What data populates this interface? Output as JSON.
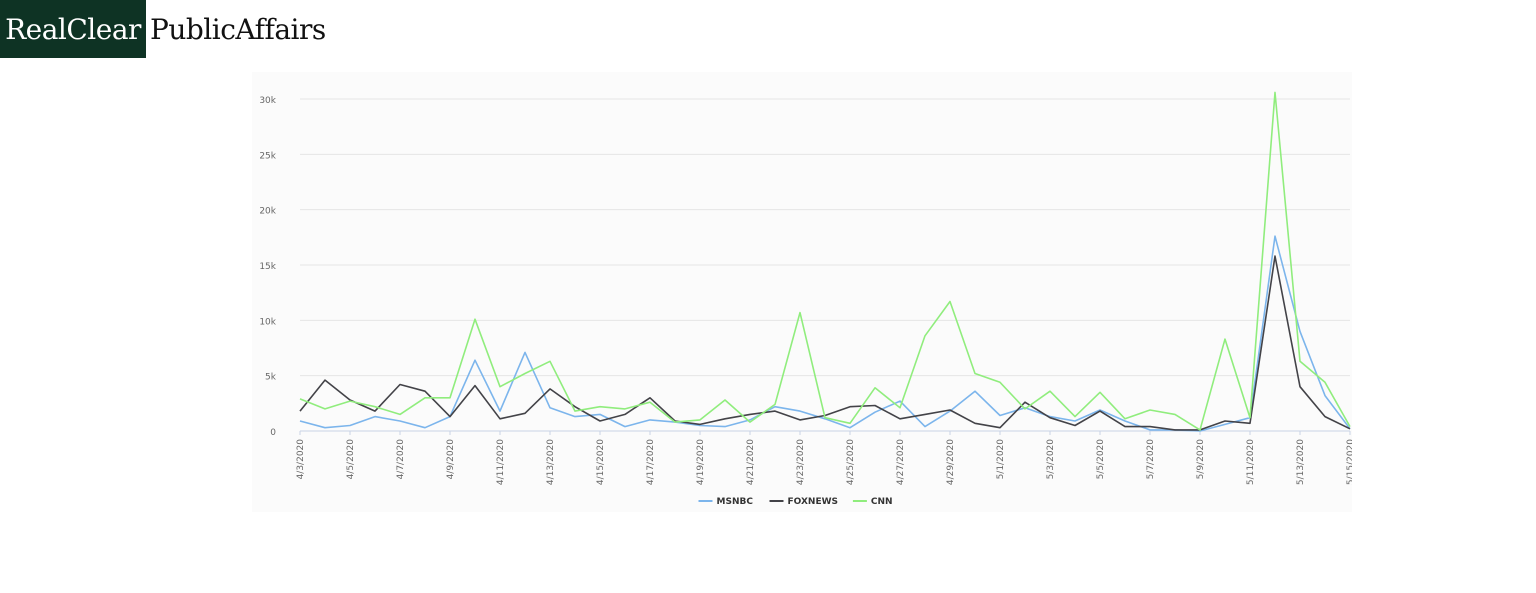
{
  "header": {
    "brand_box": "RealClear",
    "brand_rest": "PublicAffairs"
  },
  "chart_data": {
    "type": "line",
    "x": [
      "4/3/2020",
      "4/4/2020",
      "4/5/2020",
      "4/6/2020",
      "4/7/2020",
      "4/8/2020",
      "4/9/2020",
      "4/10/2020",
      "4/11/2020",
      "4/12/2020",
      "4/13/2020",
      "4/14/2020",
      "4/15/2020",
      "4/16/2020",
      "4/17/2020",
      "4/18/2020",
      "4/19/2020",
      "4/20/2020",
      "4/21/2020",
      "4/22/2020",
      "4/23/2020",
      "4/24/2020",
      "4/25/2020",
      "4/26/2020",
      "4/27/2020",
      "4/28/2020",
      "4/29/2020",
      "4/30/2020",
      "5/1/2020",
      "5/2/2020",
      "5/3/2020",
      "5/4/2020",
      "5/5/2020",
      "5/6/2020",
      "5/7/2020",
      "5/8/2020",
      "5/9/2020",
      "5/10/2020",
      "5/11/2020",
      "5/12/2020",
      "5/13/2020",
      "5/14/2020",
      "5/15/2020"
    ],
    "tick_labels": [
      "4/3/2020",
      "4/5/2020",
      "4/7/2020",
      "4/9/2020",
      "4/11/2020",
      "4/13/2020",
      "4/15/2020",
      "4/17/2020",
      "4/19/2020",
      "4/21/2020",
      "4/23/2020",
      "4/25/2020",
      "4/27/2020",
      "4/29/2020",
      "5/1/2020",
      "5/3/2020",
      "5/5/2020",
      "5/7/2020",
      "5/9/2020",
      "5/11/2020",
      "5/13/2020",
      "5/15/2020"
    ],
    "ylim": [
      0,
      30000
    ],
    "yticks": [
      0,
      5000,
      10000,
      15000,
      20000,
      25000,
      30000
    ],
    "ytick_labels": [
      "0",
      "5k",
      "10k",
      "15k",
      "20k",
      "25k",
      "30k"
    ],
    "grid": true,
    "legend_position": "bottom-center",
    "series": [
      {
        "name": "MSNBC",
        "color": "#7cb5ec",
        "values": [
          900,
          300,
          500,
          1300,
          900,
          300,
          1300,
          6400,
          1800,
          7100,
          2100,
          1300,
          1500,
          400,
          1000,
          800,
          500,
          400,
          1000,
          2200,
          1800,
          1100,
          300,
          1700,
          2700,
          400,
          1800,
          3600,
          1400,
          2100,
          1300,
          900,
          1900,
          900,
          100,
          100,
          0,
          600,
          1200,
          17600,
          9000,
          3200,
          200
        ]
      },
      {
        "name": "FOXNEWS",
        "color": "#434348",
        "values": [
          1800,
          4600,
          2800,
          1800,
          4200,
          3600,
          1300,
          4100,
          1100,
          1600,
          3800,
          2200,
          900,
          1500,
          3000,
          900,
          600,
          1100,
          1500,
          1800,
          1000,
          1400,
          2200,
          2300,
          1100,
          1500,
          1900,
          700,
          300,
          2600,
          1200,
          500,
          1800,
          400,
          400,
          100,
          100,
          900,
          700,
          15800,
          4000,
          1300,
          200
        ]
      },
      {
        "name": "CNN",
        "color": "#90ed7d",
        "values": [
          2900,
          2000,
          2700,
          2200,
          1500,
          3000,
          3000,
          10100,
          4000,
          5200,
          6300,
          1800,
          2200,
          2000,
          2600,
          800,
          1000,
          2800,
          800,
          2400,
          10700,
          1200,
          700,
          3900,
          2100,
          8600,
          11700,
          5200,
          4400,
          2000,
          3600,
          1300,
          3500,
          1100,
          1900,
          1500,
          100,
          8300,
          1200,
          30600,
          6300,
          4400,
          400
        ]
      }
    ]
  }
}
